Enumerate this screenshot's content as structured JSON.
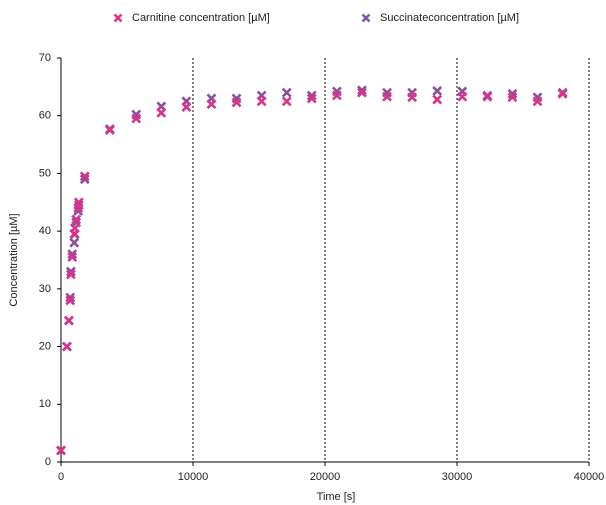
{
  "chart_data": {
    "type": "scatter",
    "xlabel": "Time [s]",
    "ylabel": "Concentration [µM]",
    "xlim": [
      0,
      40000
    ],
    "xticks": [
      0,
      10000,
      20000,
      30000,
      40000
    ],
    "ylim": [
      0,
      70
    ],
    "yticks": [
      0,
      10,
      20,
      30,
      40,
      50,
      60,
      70
    ],
    "xgrid": true,
    "legend": "top",
    "x": [
      0,
      450,
      600,
      700,
      750,
      850,
      1000,
      1050,
      1150,
      1300,
      1350,
      1800,
      3700,
      5700,
      7600,
      9500,
      11400,
      13300,
      15200,
      17100,
      19000,
      20900,
      22800,
      24700,
      26600,
      28500,
      30400,
      32300,
      34200,
      36100,
      38000
    ],
    "series": [
      {
        "name": "Carnitine concentration [µM]",
        "color": "#d8338a",
        "values": [
          2,
          20,
          24.5,
          28,
          32.5,
          35.5,
          39.5,
          40.5,
          42,
          44,
          45,
          49.5,
          57.5,
          59.5,
          60.5,
          61.5,
          62,
          62.3,
          62.5,
          62.5,
          63,
          63.5,
          64,
          63.3,
          63.2,
          62.8,
          63.3,
          63.3,
          63.2,
          62.5,
          63.8
        ]
      },
      {
        "name": "Succinateconcentration [µM]",
        "color": "#8a4f9e",
        "values": [
          2,
          20,
          24.5,
          28.5,
          33,
          36,
          38,
          39.5,
          41.5,
          43.5,
          44.5,
          49,
          57.7,
          60.2,
          61.6,
          62.5,
          63,
          63,
          63.5,
          64,
          63.5,
          64.2,
          64.4,
          64,
          64,
          64.3,
          64.2,
          63.5,
          63.8,
          63.2,
          64
        ]
      }
    ]
  }
}
